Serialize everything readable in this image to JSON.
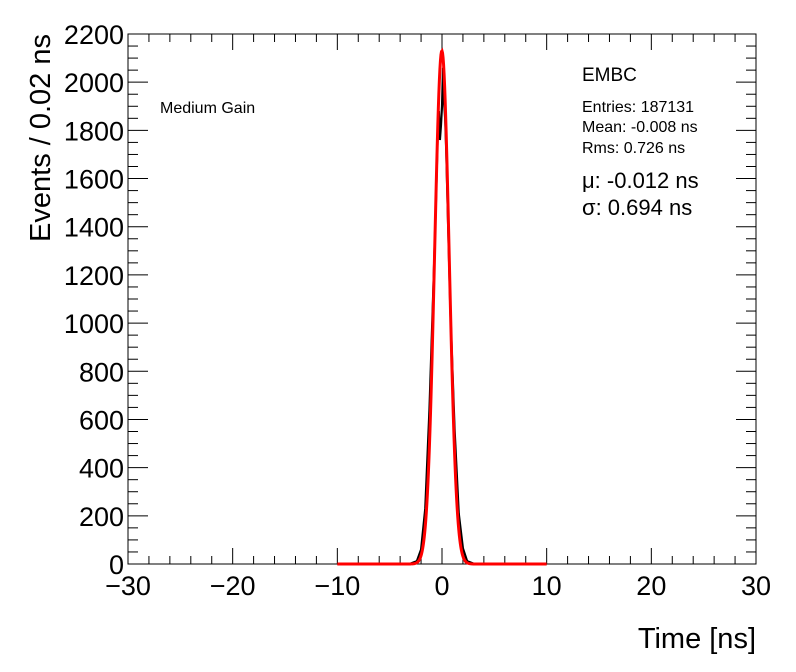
{
  "chart_data": {
    "type": "line",
    "title": "",
    "xlabel": "Time [ns]",
    "ylabel": "Events / 0.02 ns",
    "xlim": [
      -30,
      30
    ],
    "ylim": [
      0,
      2200
    ],
    "x_ticks": [
      -30,
      -20,
      -10,
      0,
      10,
      20,
      30
    ],
    "x_tick_labels": [
      "−30",
      "−20",
      "−10",
      "0",
      "10",
      "20",
      "30"
    ],
    "y_ticks": [
      0,
      200,
      400,
      600,
      800,
      1000,
      1200,
      1400,
      1600,
      1800,
      2000,
      2200
    ],
    "y_tick_labels": [
      "0",
      "200",
      "400",
      "600",
      "800",
      "1000",
      "1200",
      "1400",
      "1600",
      "1800",
      "2000",
      "2200"
    ],
    "grid": false,
    "annotations": {
      "left_label": "Medium Gain",
      "detector": "EMBC",
      "entries": "Entries: 187131",
      "mean": "Mean: -0.008 ns",
      "rms": "Rms: 0.726 ns",
      "mu": "μ: -0.012 ns",
      "sigma": "σ: 0.694 ns"
    },
    "series": [
      {
        "color": "#000000",
        "style": "histogram",
        "x": [
          -10,
          -3,
          -2.4,
          -2.0,
          -1.6,
          -1.2,
          -0.8,
          -0.6,
          -0.4,
          -0.3,
          -0.2,
          -0.1,
          0.0,
          0.1,
          0.2,
          0.3,
          0.4,
          0.6,
          0.8,
          1.2,
          1.6,
          2.0,
          2.4,
          3,
          10
        ],
        "y": [
          0,
          2,
          12,
          60,
          230,
          640,
          1180,
          1470,
          1800,
          1880,
          1760,
          1820,
          1900,
          2060,
          1920,
          1850,
          1720,
          1380,
          1050,
          560,
          210,
          65,
          12,
          2,
          0
        ]
      },
      {
        "color": "#ff0000",
        "style": "fit",
        "mu": -0.012,
        "sigma": 0.694,
        "amplitude": 2130,
        "x_range": [
          -10,
          10
        ]
      }
    ]
  }
}
